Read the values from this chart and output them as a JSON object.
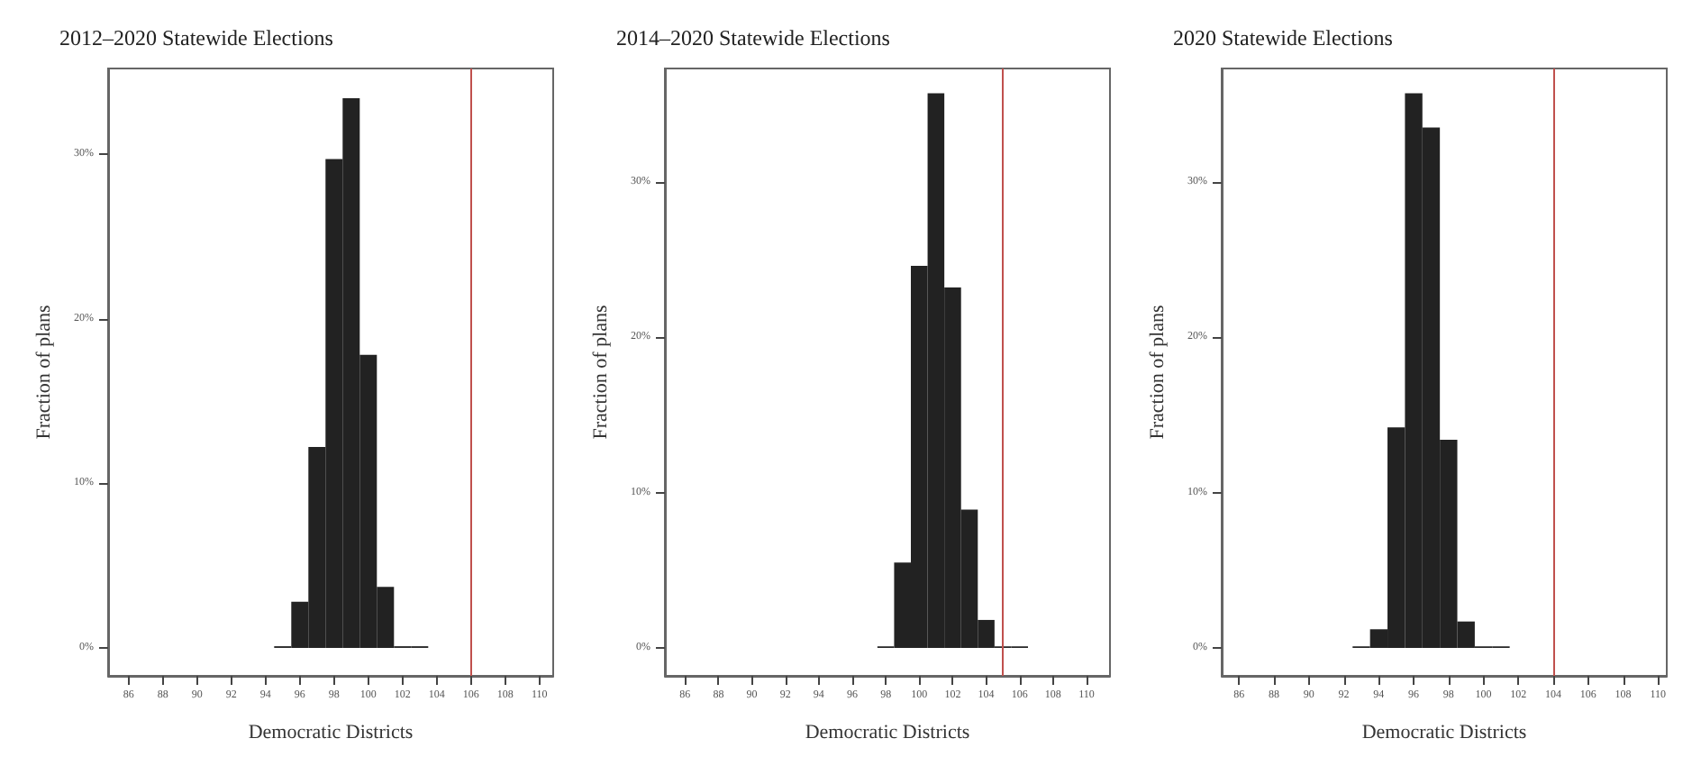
{
  "chart_data": [
    {
      "type": "histogram",
      "title": "2012–2020 Statewide Elections",
      "xlabel": "Democratic Districts",
      "ylabel": "Fraction of plans",
      "color": "#222222",
      "bins": [
        94.5,
        95.5,
        96.5,
        97.5,
        98.5,
        99.5,
        100.5,
        101.5,
        102.5,
        103.5
      ],
      "values": [
        0.1,
        2.8,
        12.2,
        29.7,
        33.4,
        17.8,
        3.7,
        0.1,
        0.1
      ],
      "xlim": [
        84.8,
        110.8
      ],
      "xticks": [
        86,
        88,
        90,
        92,
        94,
        96,
        98,
        100,
        102,
        104,
        106,
        108,
        110
      ],
      "ylim": [
        -1.7,
        35.2
      ],
      "yticks": [
        {
          "value": 0,
          "label": "0%"
        },
        {
          "value": 10,
          "label": "10%"
        },
        {
          "value": 20,
          "label": "20%"
        },
        {
          "value": 30,
          "label": "30%"
        }
      ],
      "ref_lines": [
        {
          "axis": "x",
          "value": 106,
          "color": "#c0504d"
        }
      ],
      "grid": false
    },
    {
      "type": "histogram",
      "title": "2014–2020 Statewide Elections",
      "xlabel": "Democratic Districts",
      "ylabel": "Fraction of plans",
      "color": "#222222",
      "bins": [
        97.5,
        98.5,
        99.5,
        100.5,
        101.5,
        102.5,
        103.5,
        104.5,
        105.5,
        106.5
      ],
      "values": [
        0.1,
        5.5,
        24.6,
        35.7,
        23.2,
        8.9,
        1.8,
        0.1,
        0.1
      ],
      "xlim": [
        84.8,
        111.4
      ],
      "xticks": [
        86,
        88,
        90,
        92,
        94,
        96,
        98,
        100,
        102,
        104,
        106,
        108,
        110
      ],
      "ylim": [
        -1.8,
        37.3
      ],
      "yticks": [
        {
          "value": 0,
          "label": "0%"
        },
        {
          "value": 10,
          "label": "10%"
        },
        {
          "value": 20,
          "label": "20%"
        },
        {
          "value": 30,
          "label": "30%"
        }
      ],
      "ref_lines": [
        {
          "axis": "x",
          "value": 105,
          "color": "#c0504d"
        }
      ],
      "grid": false
    },
    {
      "type": "histogram",
      "title": "2020 Statewide Elections",
      "xlabel": "Democratic Districts",
      "ylabel": "Fraction of plans",
      "color": "#222222",
      "bins": [
        92.5,
        93.5,
        94.5,
        95.5,
        96.5,
        97.5,
        98.5,
        99.5,
        100.5,
        101.5
      ],
      "values": [
        0.1,
        1.2,
        14.2,
        35.7,
        33.5,
        13.4,
        1.7,
        0.1,
        0.1
      ],
      "xlim": [
        85.0,
        110.5
      ],
      "xticks": [
        86,
        88,
        90,
        92,
        94,
        96,
        98,
        100,
        102,
        104,
        106,
        108,
        110
      ],
      "ylim": [
        -1.8,
        37.3
      ],
      "yticks": [
        {
          "value": 0,
          "label": "0%"
        },
        {
          "value": 10,
          "label": "10%"
        },
        {
          "value": 20,
          "label": "20%"
        },
        {
          "value": 30,
          "label": "30%"
        }
      ],
      "ref_lines": [
        {
          "axis": "x",
          "value": 104,
          "color": "#c0504d"
        }
      ],
      "grid": false
    }
  ]
}
